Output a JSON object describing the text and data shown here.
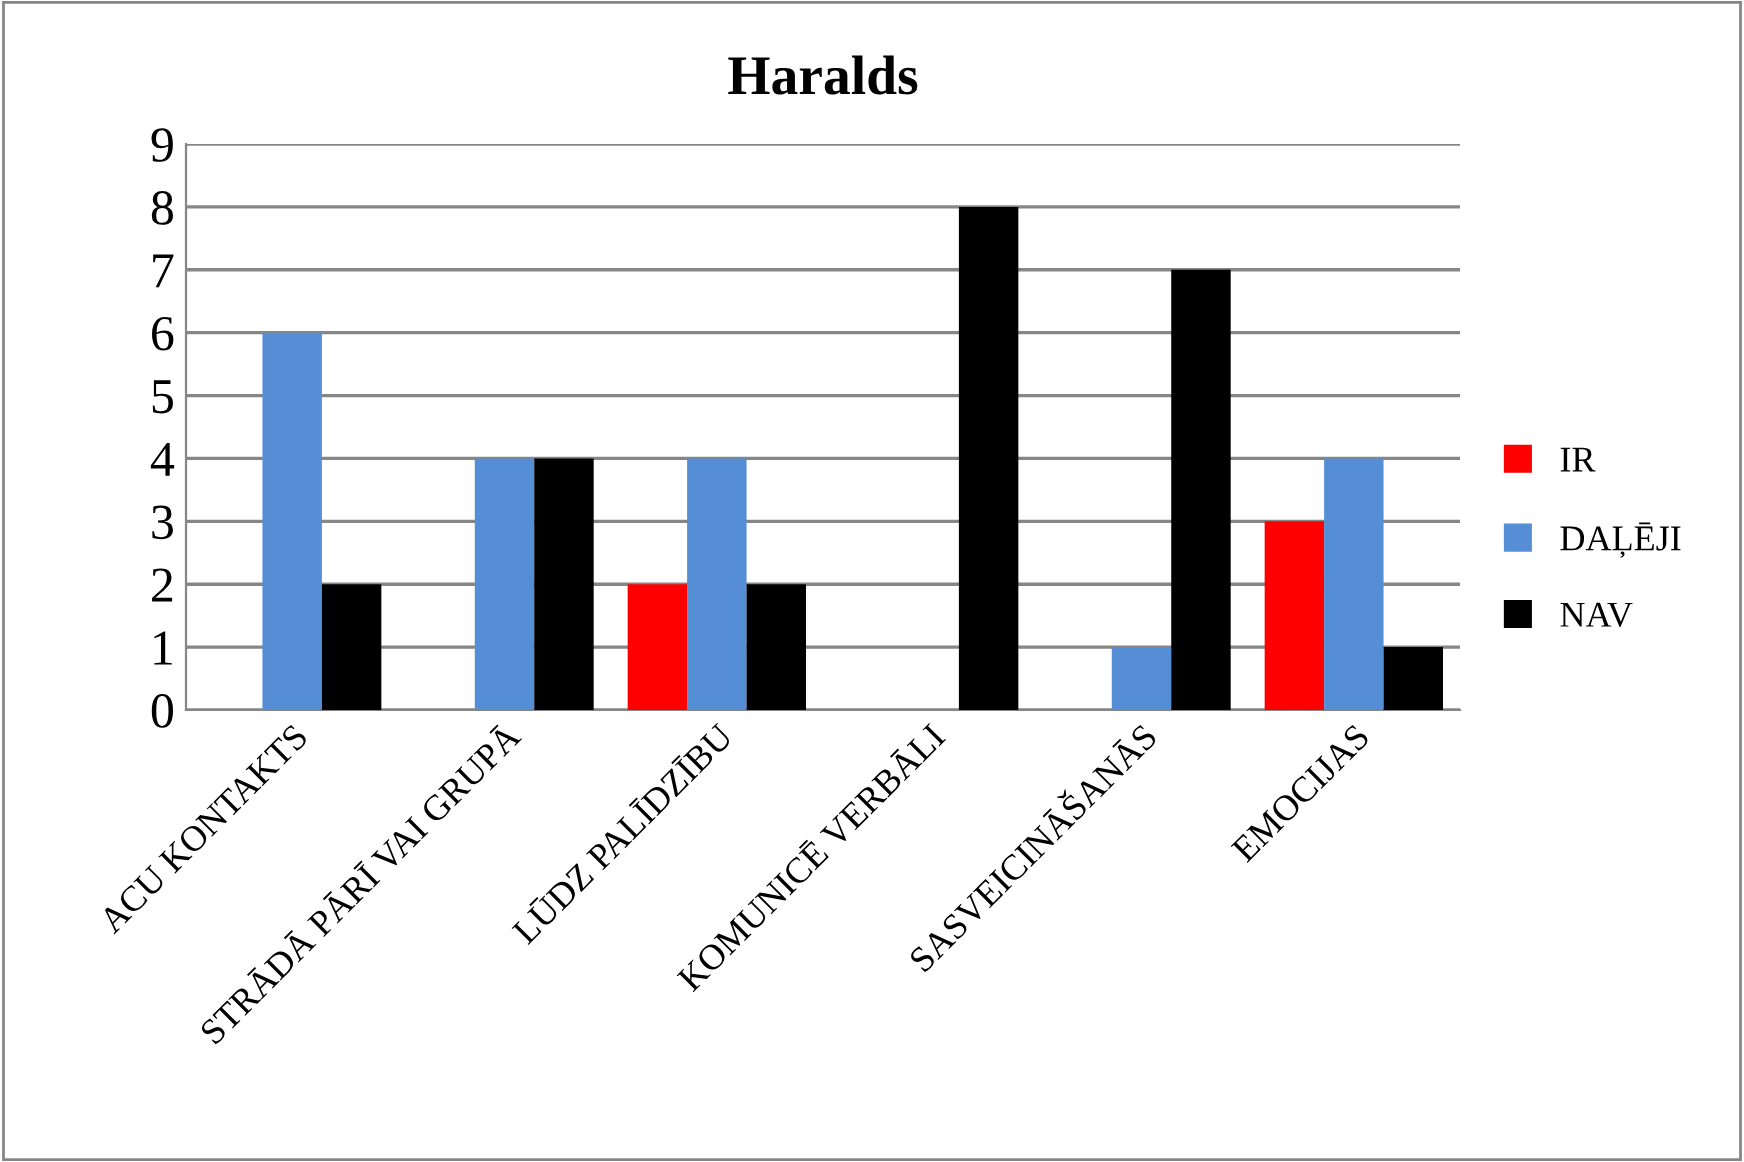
{
  "chart_data": {
    "type": "bar",
    "title": "Haralds",
    "categories": [
      "ACU KONTAKTS",
      "STRĀDĀ PĀRĪ VAI GRUPĀ",
      "LŪDZ PALĪDZĪBU",
      "KOMUNICĒ VERBĀLI",
      "SASVEICINĀŠANĀS",
      "EMOCIJAS"
    ],
    "series": [
      {
        "name": "IR",
        "color": "#ff0000",
        "values": [
          0,
          0,
          2,
          0,
          0,
          3
        ]
      },
      {
        "name": "DAĻĒJI",
        "color": "#558ed5",
        "values": [
          6,
          4,
          4,
          0,
          1,
          4
        ]
      },
      {
        "name": "NAV",
        "color": "#000000",
        "values": [
          2,
          4,
          2,
          8,
          7,
          1
        ]
      }
    ],
    "ylim": [
      0,
      9
    ],
    "yticks": [
      0,
      1,
      2,
      3,
      4,
      5,
      6,
      7,
      8,
      9
    ],
    "grid": "y",
    "legend": "right"
  }
}
